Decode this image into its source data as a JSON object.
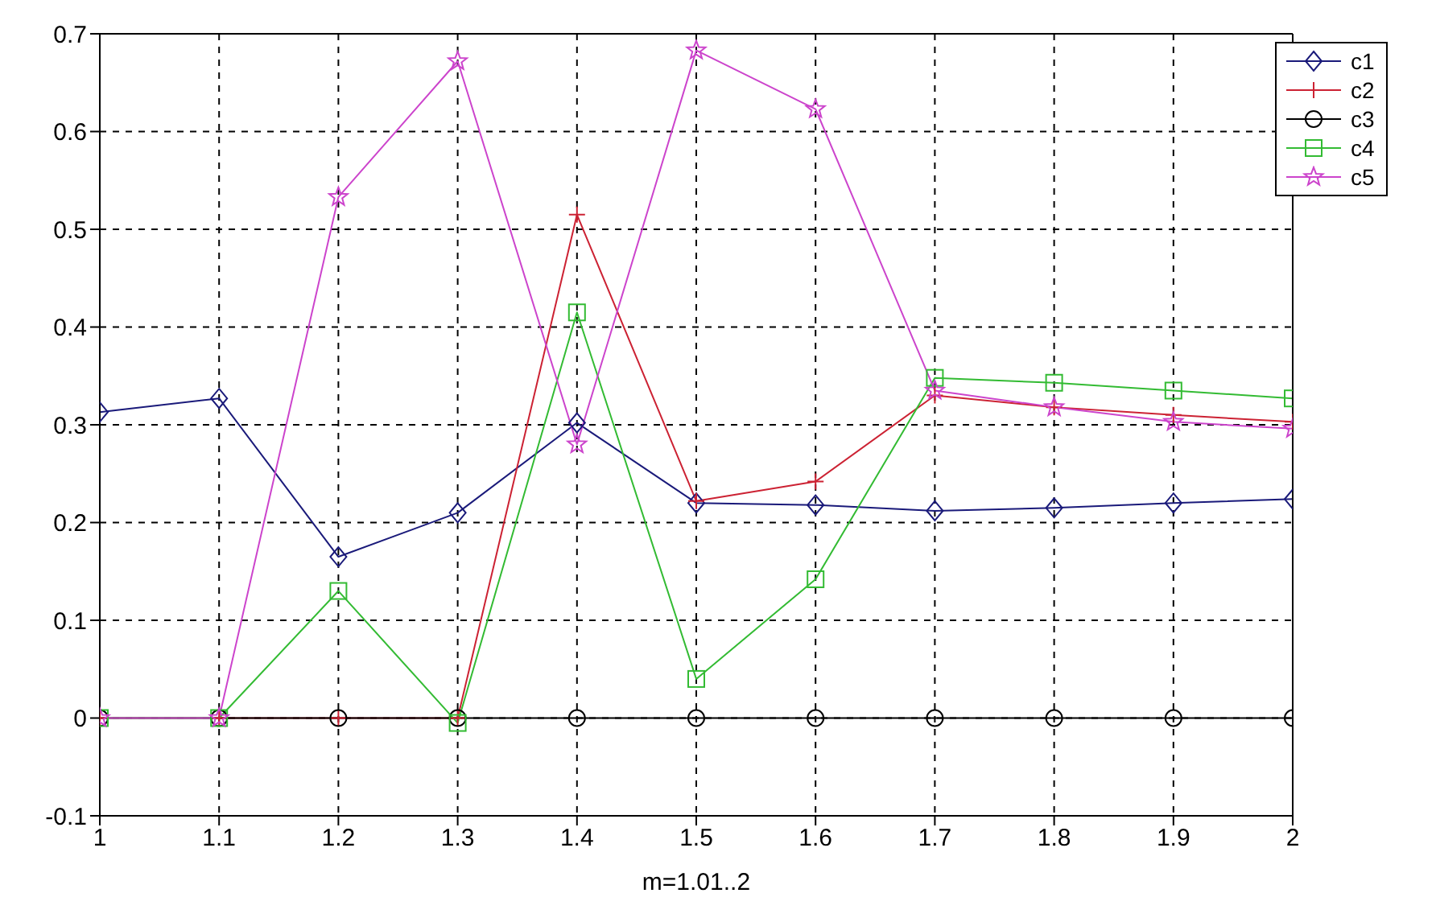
{
  "chart_data": {
    "type": "line",
    "xlabel": "m=1.01..2",
    "x": [
      1,
      1.1,
      1.2,
      1.3,
      1.4,
      1.5,
      1.6,
      1.7,
      1.8,
      1.9,
      2
    ],
    "xlim": [
      1,
      2
    ],
    "xticks": [
      1,
      1.1,
      1.2,
      1.3,
      1.4,
      1.5,
      1.6,
      1.7,
      1.8,
      1.9,
      2
    ],
    "ylim": [
      -0.1,
      0.7
    ],
    "yticks": [
      -0.1,
      0,
      0.1,
      0.2,
      0.3,
      0.4,
      0.5,
      0.6,
      0.7
    ],
    "grid": true,
    "legend": "top right",
    "line_style": "solid",
    "series": [
      {
        "name": "c1",
        "color": "#1a1a7a",
        "marker": "diamond",
        "values": [
          0.313,
          0.327,
          0.165,
          0.21,
          0.302,
          0.22,
          0.218,
          0.212,
          0.215,
          0.22,
          0.224
        ]
      },
      {
        "name": "c2",
        "color": "#cc2233",
        "marker": "cross",
        "values": [
          0,
          0,
          0,
          0,
          0.515,
          0.222,
          0.242,
          0.33,
          0.318,
          0.31,
          0.303
        ]
      },
      {
        "name": "c3",
        "color": "#000000",
        "marker": "circle",
        "values": [
          0,
          0,
          0,
          0,
          0,
          0,
          0,
          0,
          0,
          0,
          0
        ]
      },
      {
        "name": "c4",
        "color": "#33bb33",
        "marker": "square",
        "values": [
          0,
          0,
          0.13,
          -0.005,
          0.415,
          0.04,
          0.142,
          0.348,
          0.343,
          0.335,
          0.327
        ]
      },
      {
        "name": "c5",
        "color": "#cc44cc",
        "marker": "star",
        "values": [
          0,
          0,
          0.533,
          0.672,
          0.28,
          0.683,
          0.623,
          0.335,
          0.318,
          0.303,
          0.296
        ]
      }
    ]
  }
}
